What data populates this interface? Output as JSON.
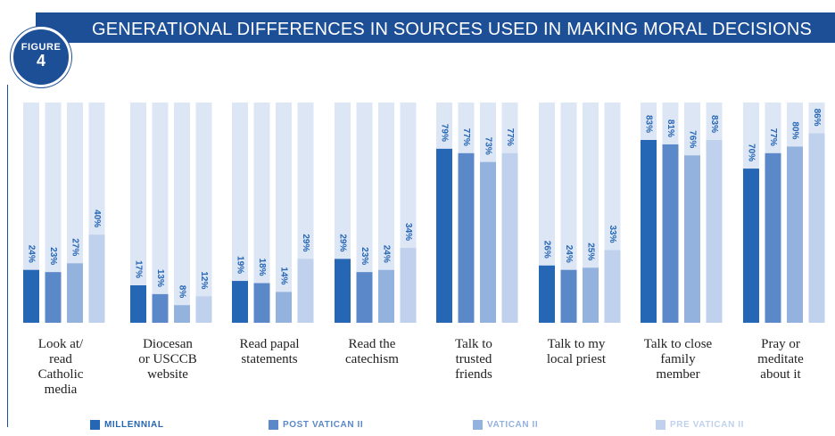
{
  "figure": {
    "label": "FIGURE",
    "number": "4"
  },
  "chart_data": {
    "type": "bar",
    "title": "GENERATIONAL DIFFERENCES IN SOURCES USED IN MAKING MORAL DECISIONS",
    "categories": [
      "Look at/ read Catholic media",
      "Diocesan or USCCB website",
      "Read papal statements",
      "Read the catechism",
      "Talk to trusted friends",
      "Talk to my local priest",
      "Talk to close family member",
      "Pray or meditate about it"
    ],
    "category_lines": [
      [
        "Look at/",
        "read",
        "Catholic",
        "media"
      ],
      [
        "Diocesan",
        "or USCCB",
        "website"
      ],
      [
        "Read papal",
        "statements"
      ],
      [
        "Read the",
        "catechism"
      ],
      [
        "Talk to",
        "trusted",
        "friends"
      ],
      [
        "Talk to my",
        "local priest"
      ],
      [
        "Talk to close",
        "family",
        "member"
      ],
      [
        "Pray or",
        "meditate",
        "about it"
      ]
    ],
    "series": [
      {
        "name": "MILLENNIAL",
        "color": "#2566b5",
        "values": [
          24,
          17,
          19,
          29,
          79,
          26,
          83,
          70
        ]
      },
      {
        "name": "POST VATICAN II",
        "color": "#5b88c8",
        "values": [
          23,
          13,
          18,
          23,
          77,
          24,
          81,
          77
        ]
      },
      {
        "name": "VATICAN II",
        "color": "#93b2de",
        "values": [
          27,
          8,
          14,
          24,
          73,
          25,
          76,
          80
        ]
      },
      {
        "name": "PRE VATICAN II",
        "color": "#bfd1ed",
        "values": [
          40,
          12,
          29,
          34,
          77,
          33,
          83,
          86
        ]
      }
    ],
    "value_labels": [
      [
        "24%",
        "23%",
        "27%",
        "40%"
      ],
      [
        "17%",
        "13%",
        "8%",
        "12%"
      ],
      [
        "19%",
        "18%",
        "14%",
        "29%"
      ],
      [
        "29%",
        "23%",
        "24%",
        "34%"
      ],
      [
        "79%",
        "77%",
        "73%",
        "77%"
      ],
      [
        "26%",
        "24%",
        "25%",
        "33%"
      ],
      [
        "83%",
        "81%",
        "76%",
        "83%"
      ],
      [
        "70%",
        "77%",
        "80%",
        "86%"
      ]
    ],
    "ylim": [
      0,
      100
    ],
    "track_color": "#dde6f4",
    "label_color": "#2566b5",
    "grid": false,
    "legend_position": "bottom"
  }
}
